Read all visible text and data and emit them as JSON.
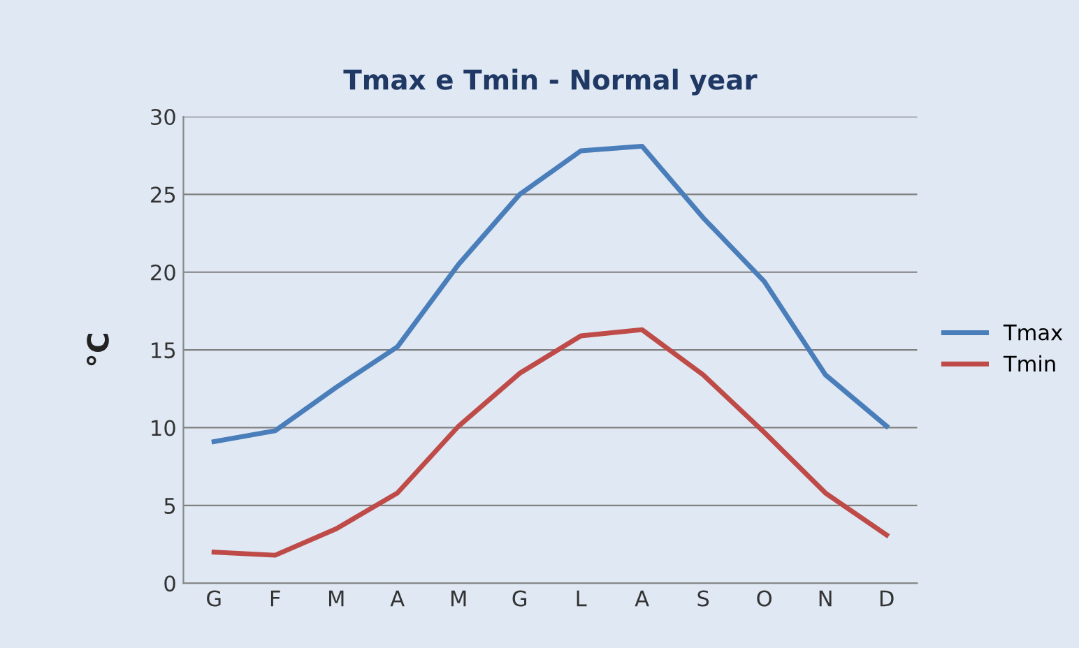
{
  "chart_data": {
    "type": "line",
    "title": "Tmax e Tmin - Normal year",
    "ylabel": "°C",
    "categories": [
      "G",
      "F",
      "M",
      "A",
      "M",
      "G",
      "L",
      "A",
      "S",
      "O",
      "N",
      "D"
    ],
    "series": [
      {
        "name": "Tmax",
        "color": "#4a7ebb",
        "values": [
          9.1,
          9.8,
          12.6,
          15.2,
          20.5,
          25.0,
          27.8,
          28.1,
          23.5,
          19.4,
          13.4,
          10.1
        ]
      },
      {
        "name": "Tmin",
        "color": "#be4b48",
        "values": [
          2.0,
          1.8,
          3.5,
          5.8,
          10.1,
          13.5,
          15.9,
          16.3,
          13.4,
          9.7,
          5.8,
          3.1
        ]
      }
    ],
    "ylim": [
      0,
      30
    ],
    "yticks": [
      0,
      5,
      10,
      15,
      20,
      25,
      30
    ],
    "grid": "y",
    "legend": "right",
    "marker": "none",
    "line_style": "solid"
  }
}
